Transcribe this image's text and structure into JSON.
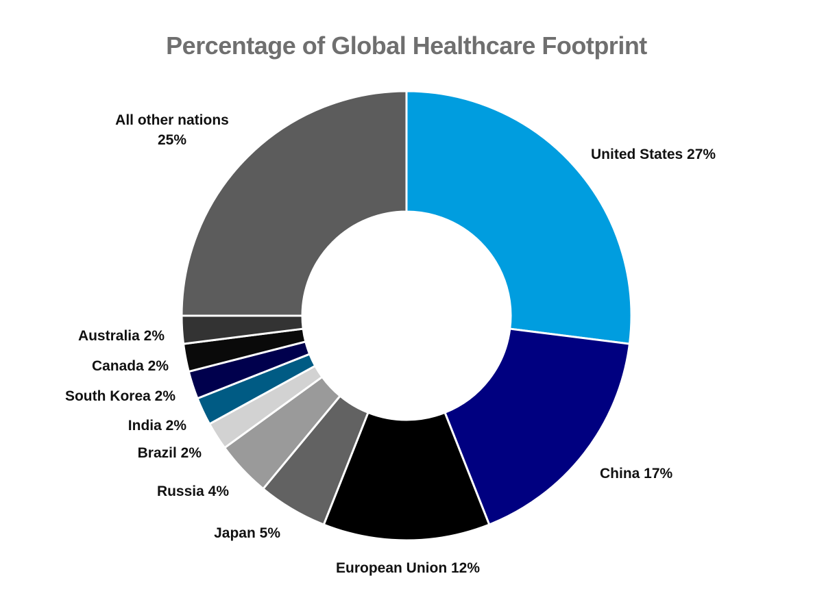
{
  "chart_data": {
    "type": "pie",
    "style": "donut",
    "title": "Percentage of Global Healthcare Footprint",
    "start_angle": "12 o'clock, clockwise",
    "slices": [
      {
        "label": "United States",
        "value": 27,
        "text": "United States 27%",
        "color": "#009ddf"
      },
      {
        "label": "China",
        "value": 17,
        "text": "China 17%",
        "color": "#000080"
      },
      {
        "label": "European Union",
        "value": 12,
        "text": "European Union 12%",
        "color": "#000000"
      },
      {
        "label": "Japan",
        "value": 5,
        "text": "Japan 5%",
        "color": "#626262"
      },
      {
        "label": "Russia",
        "value": 4,
        "text": "Russia 4%",
        "color": "#9a9a9a"
      },
      {
        "label": "Brazil",
        "value": 2,
        "text": "Brazil 2%",
        "color": "#d2d2d2"
      },
      {
        "label": "India",
        "value": 2,
        "text": "India 2%",
        "color": "#005b84"
      },
      {
        "label": "South Korea",
        "value": 2,
        "text": "South Korea 2%",
        "color": "#00004d"
      },
      {
        "label": "Canada",
        "value": 2,
        "text": "Canada 2%",
        "color": "#0a0a0a"
      },
      {
        "label": "Australia",
        "value": 2,
        "text": "Australia 2%",
        "color": "#333333"
      },
      {
        "label": "All other nations",
        "value": 25,
        "text": "All other nations 25%",
        "color": "#5c5c5c"
      }
    ]
  }
}
